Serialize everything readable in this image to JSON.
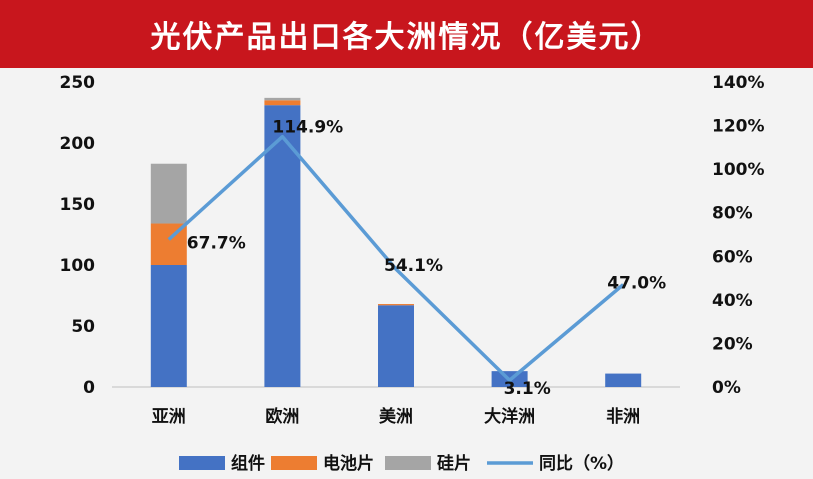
{
  "title": "光伏产品出口各大洲情况（亿美元）",
  "colors": {
    "title_bg": "#c8161d",
    "components": "#4472c4",
    "cells": "#ed7d31",
    "wafers": "#a5a5a5",
    "yoy": "#5b9bd5"
  },
  "chart_data": {
    "type": "bar",
    "stacked": true,
    "categories": [
      "亚洲",
      "欧洲",
      "美洲",
      "大洋洲",
      "非洲"
    ],
    "series": [
      {
        "name": "组件",
        "values": [
          100,
          231,
          67,
          13,
          11
        ]
      },
      {
        "name": "电池片",
        "values": [
          34,
          4,
          1,
          0,
          0
        ]
      },
      {
        "name": "硅片",
        "values": [
          49,
          2,
          0,
          0,
          0
        ]
      }
    ],
    "line_series": {
      "name": "同比（%）",
      "values": [
        67.7,
        114.9,
        54.1,
        3.1,
        47.0
      ]
    },
    "data_labels": [
      "67.7%",
      "114.9%",
      "54.1%",
      "3.1%",
      "47.0%"
    ],
    "ylim": [
      0,
      250
    ],
    "y_ticks": [
      "0",
      "50",
      "100",
      "150",
      "200",
      "250"
    ],
    "y2lim": [
      0,
      140
    ],
    "y2_ticks": [
      "0%",
      "20%",
      "40%",
      "60%",
      "80%",
      "100%",
      "120%",
      "140%"
    ],
    "grid": false,
    "legend_position": "bottom"
  }
}
